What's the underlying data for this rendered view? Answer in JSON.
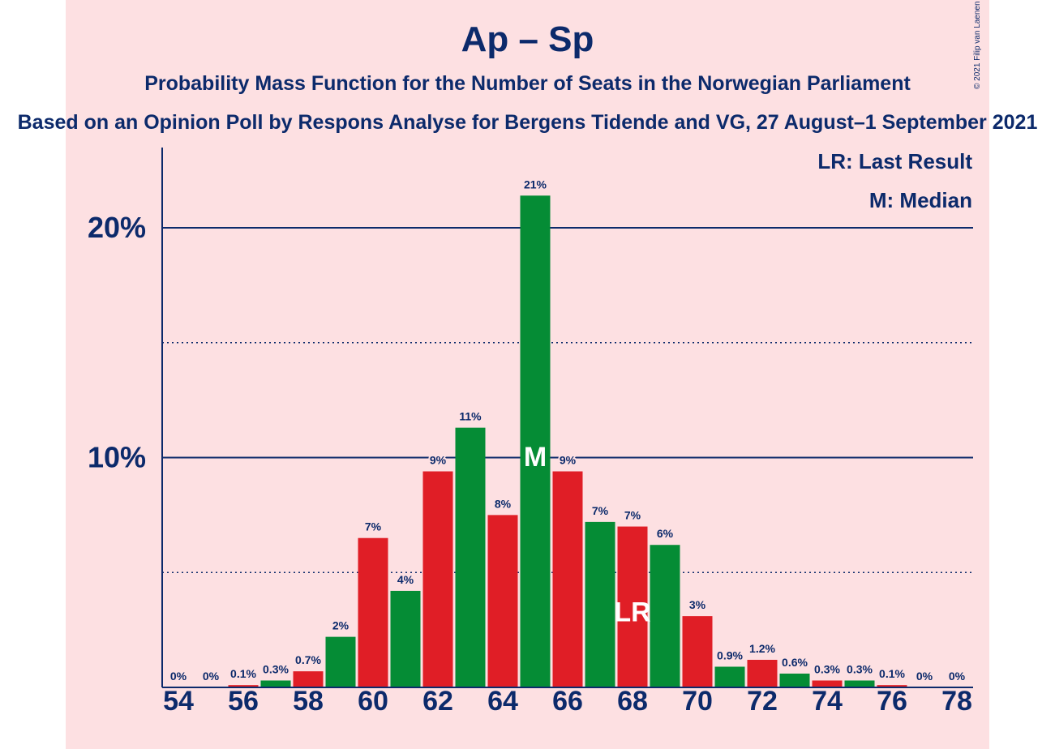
{
  "title": "Ap – Sp",
  "subtitle": "Probability Mass Function for the Number of Seats in the Norwegian Parliament",
  "subtitle2": "Based on an Opinion Poll by Respons Analyse for Bergens Tidende and VG, 27 August–1 September 2021",
  "copyright": "© 2021 Filip van Laenen",
  "legend": {
    "last_result": "LR: Last Result",
    "median": "M: Median"
  },
  "colors": {
    "background": "#fde0e2",
    "text": "#0c2a6b",
    "red": "#e01e26",
    "green": "#058c35",
    "axis": "#0c2a6b"
  },
  "chart_data": {
    "type": "bar",
    "x": [
      54,
      55,
      56,
      57,
      58,
      59,
      60,
      61,
      62,
      63,
      64,
      65,
      66,
      67,
      68,
      69,
      70,
      71,
      72,
      73,
      74,
      75,
      76,
      77,
      78
    ],
    "values": [
      0,
      0,
      0.1,
      0.3,
      0.7,
      2.2,
      6.5,
      4.2,
      9.4,
      11.3,
      7.5,
      21.4,
      9.4,
      7.2,
      7.0,
      6.2,
      3.1,
      0.9,
      1.2,
      0.6,
      0.3,
      0.3,
      0.1,
      0,
      0
    ],
    "labels": [
      "0%",
      "0%",
      "0.1%",
      "0.3%",
      "0.7%",
      "2%",
      "7%",
      "4%",
      "9%",
      "11%",
      "8%",
      "21%",
      "9%",
      "7%",
      "7%",
      "6%",
      "3%",
      "0.9%",
      "1.2%",
      "0.6%",
      "0.3%",
      "0.3%",
      "0.1%",
      "0%",
      "0%"
    ],
    "bar_colors": [
      "red",
      "green",
      "red",
      "green",
      "red",
      "green",
      "red",
      "green",
      "red",
      "green",
      "red",
      "green",
      "red",
      "green",
      "red",
      "green",
      "red",
      "green",
      "red",
      "green",
      "red",
      "green",
      "red",
      "green",
      "red"
    ],
    "x_tick_labels": [
      "54",
      "56",
      "58",
      "60",
      "62",
      "64",
      "66",
      "68",
      "70",
      "72",
      "74",
      "76",
      "78"
    ],
    "y_tick_labels": [
      "10%",
      "20%"
    ],
    "ylim": [
      0,
      23.4
    ],
    "solid_gridlines": [
      10,
      20
    ],
    "dotted_gridlines": [
      5,
      15
    ],
    "median_seat": 65,
    "median_marker": "M",
    "last_result_seat": 68,
    "last_result_marker": "LR",
    "legend_position": "top-right"
  }
}
